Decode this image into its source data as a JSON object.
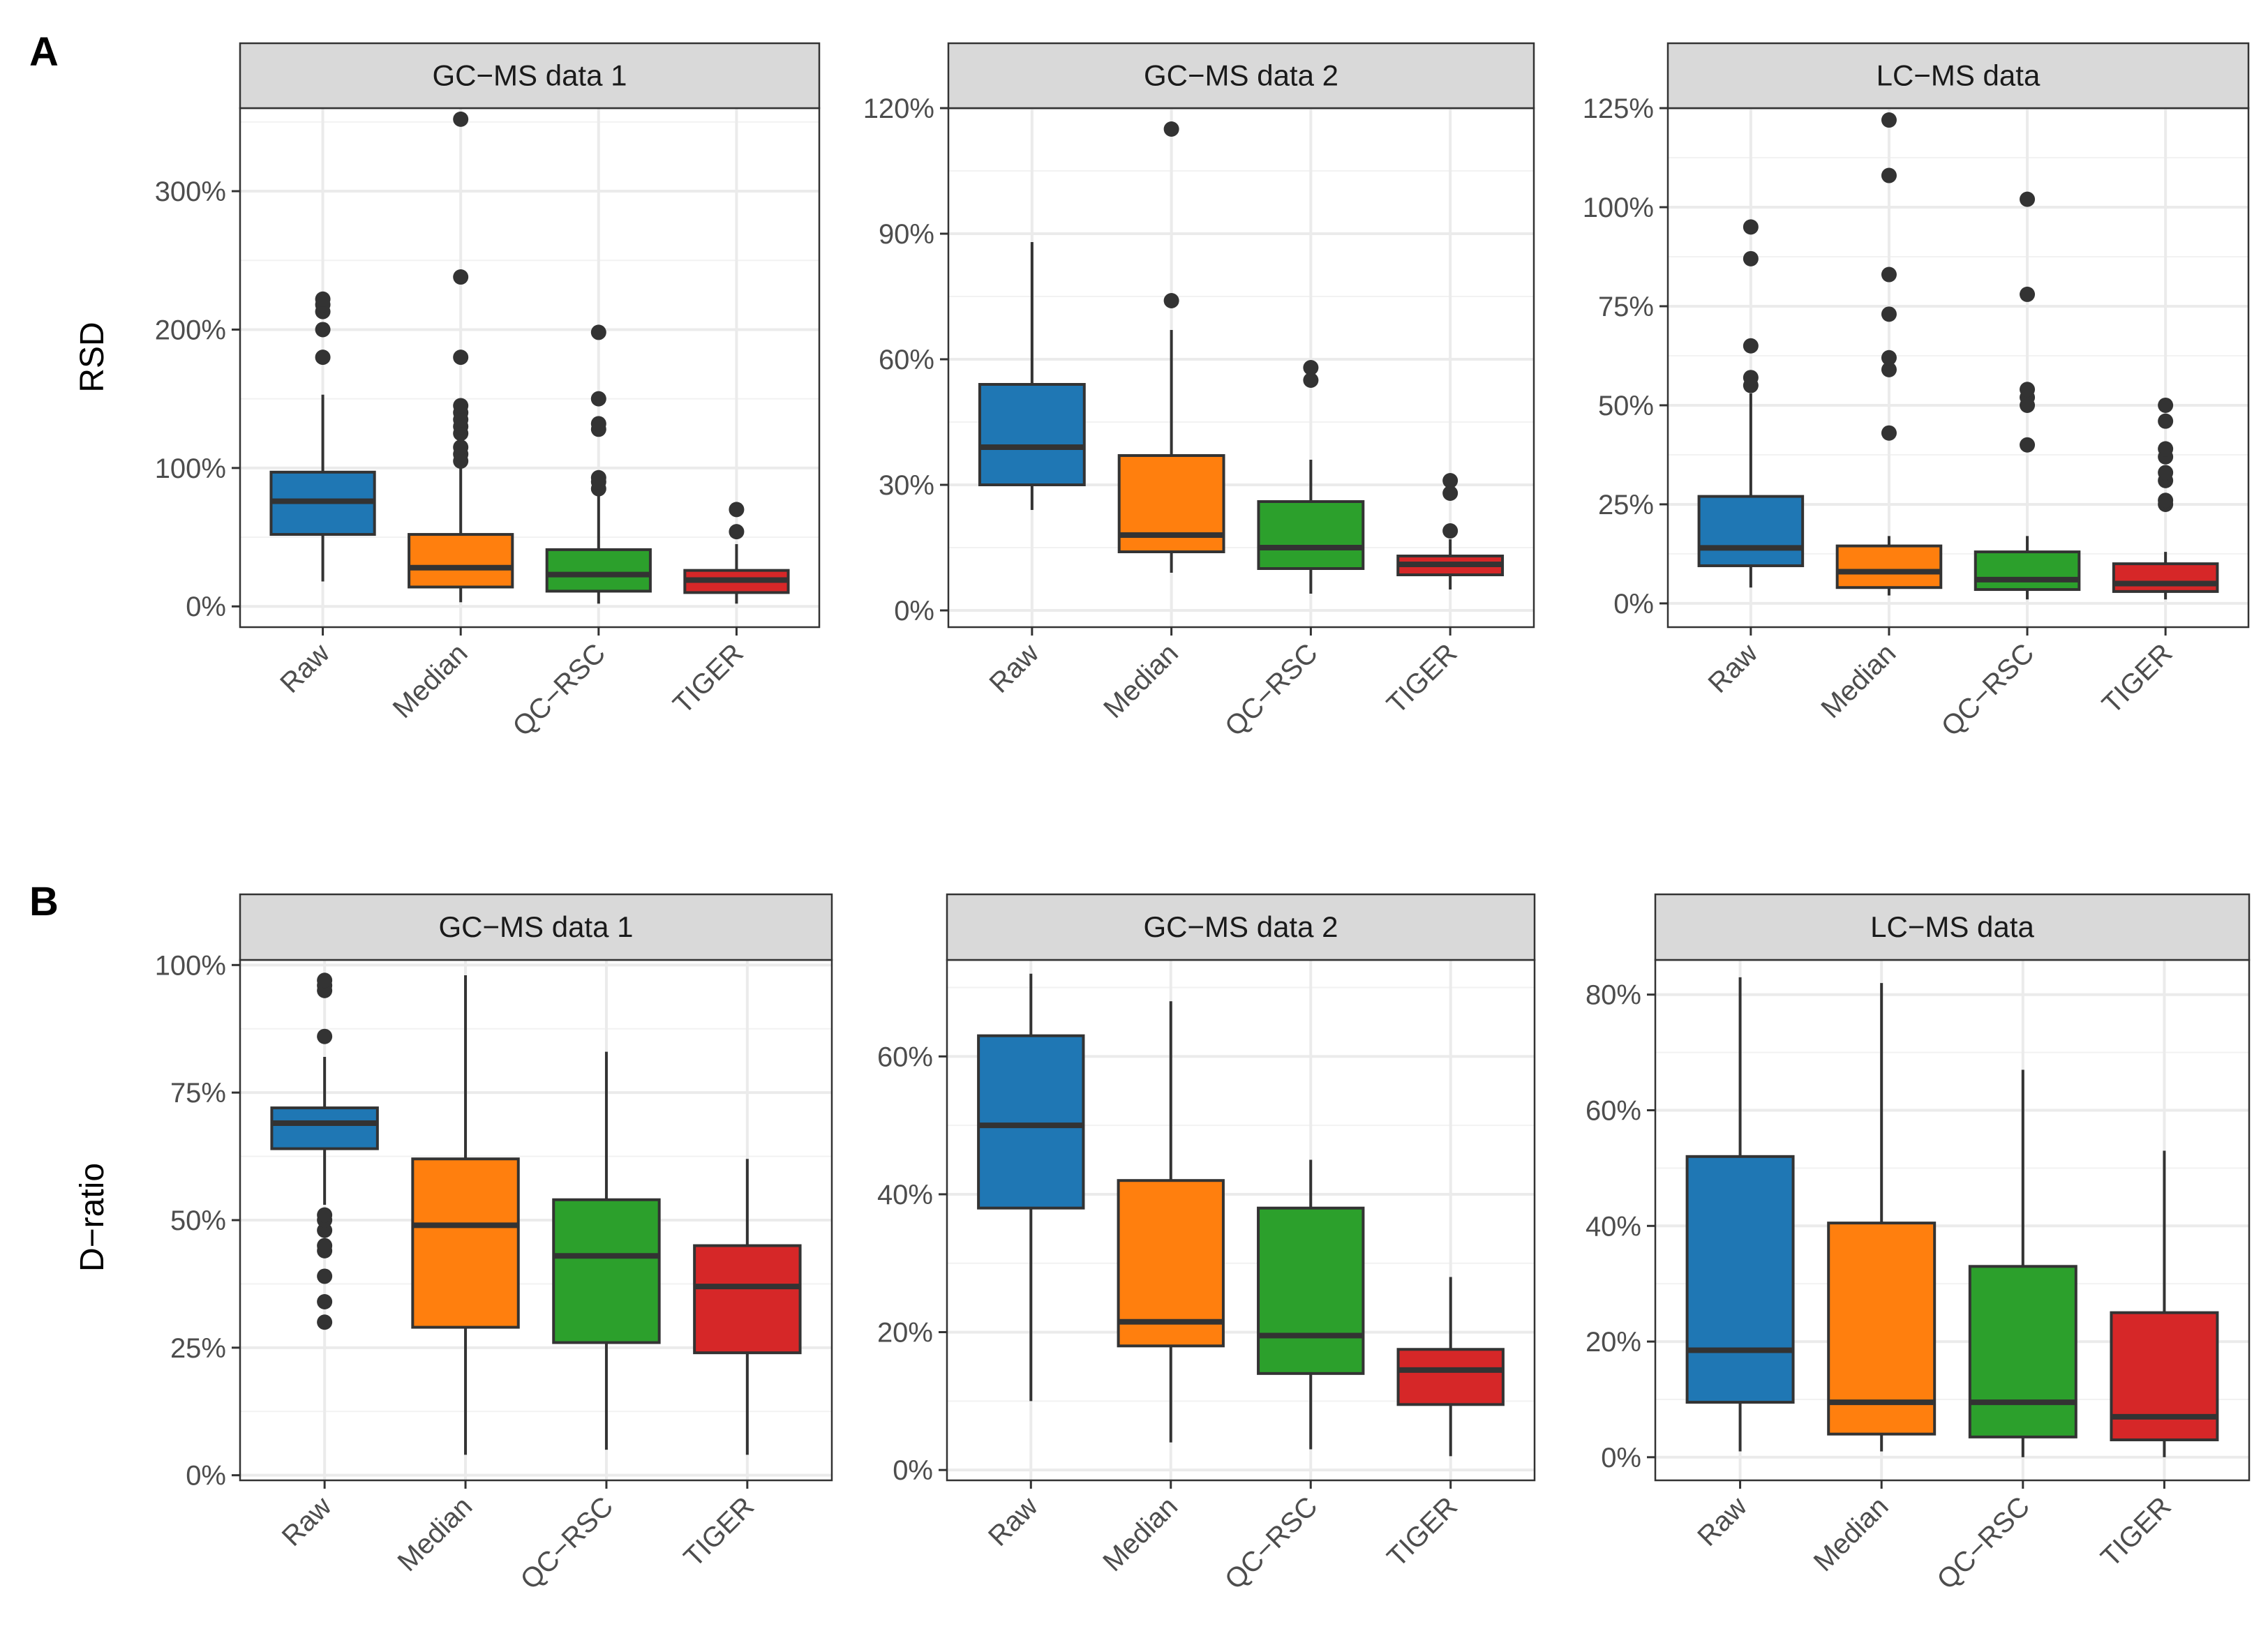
{
  "panels": [
    {
      "letter": "A",
      "ylabel": "RSD"
    },
    {
      "letter": "B",
      "ylabel": "D−ratio"
    }
  ],
  "colors": {
    "Raw": "#1F77B4",
    "Median": "#FF7F0E",
    "QC−RSC": "#2CA02C",
    "TIGER": "#D62728",
    "strip_fill": "#D9D9D9",
    "outline": "#333333"
  },
  "chart_data": [
    {
      "type": "box",
      "panel": "A",
      "title": "GC−MS data 1",
      "ylabel": "RSD",
      "categories": [
        "Raw",
        "Median",
        "QC−RSC",
        "TIGER"
      ],
      "ylim": [
        -15,
        360
      ],
      "yticks": [
        0,
        100,
        200,
        300
      ],
      "ytick_labels": [
        "0%",
        "100%",
        "200%",
        "300%"
      ],
      "boxes": [
        {
          "min": 18,
          "q1": 52,
          "median": 76,
          "q3": 97,
          "max": 153,
          "outliers": [
            180,
            200,
            213,
            218,
            222
          ]
        },
        {
          "min": 3,
          "q1": 14,
          "median": 28,
          "q3": 52,
          "max": 100,
          "outliers": [
            105,
            110,
            115,
            125,
            130,
            135,
            140,
            145,
            180,
            238,
            352
          ]
        },
        {
          "min": 2,
          "q1": 11,
          "median": 23,
          "q3": 41,
          "max": 80,
          "outliers": [
            85,
            90,
            93,
            128,
            132,
            150,
            198
          ]
        },
        {
          "min": 2,
          "q1": 10,
          "median": 19,
          "q3": 26,
          "max": 45,
          "outliers": [
            54,
            70
          ]
        }
      ]
    },
    {
      "type": "box",
      "panel": "A",
      "title": "GC−MS data 2",
      "ylabel": "",
      "categories": [
        "Raw",
        "Median",
        "QC−RSC",
        "TIGER"
      ],
      "ylim": [
        -4,
        120
      ],
      "yticks": [
        0,
        30,
        60,
        90,
        120
      ],
      "ytick_labels": [
        "0%",
        "30%",
        "60%",
        "90%",
        "120%"
      ],
      "boxes": [
        {
          "min": 24,
          "q1": 30,
          "median": 39,
          "q3": 54,
          "max": 88,
          "outliers": []
        },
        {
          "min": 9,
          "q1": 14,
          "median": 18,
          "q3": 37,
          "max": 67,
          "outliers": [
            74,
            115
          ]
        },
        {
          "min": 4,
          "q1": 10,
          "median": 15,
          "q3": 26,
          "max": 36,
          "outliers": [
            55,
            58
          ]
        },
        {
          "min": 5,
          "q1": 8.5,
          "median": 11,
          "q3": 13,
          "max": 17,
          "outliers": [
            19,
            28,
            31
          ]
        }
      ]
    },
    {
      "type": "box",
      "panel": "A",
      "title": "LC−MS data",
      "ylabel": "",
      "categories": [
        "Raw",
        "Median",
        "QC−RSC",
        "TIGER"
      ],
      "ylim": [
        -6,
        125
      ],
      "yticks": [
        0,
        25,
        50,
        75,
        100,
        125
      ],
      "ytick_labels": [
        "0%",
        "25%",
        "50%",
        "75%",
        "100%",
        "125%"
      ],
      "boxes": [
        {
          "min": 4,
          "q1": 9.5,
          "median": 14,
          "q3": 27,
          "max": 53,
          "outliers": [
            55,
            57,
            65,
            87,
            95
          ]
        },
        {
          "min": 2,
          "q1": 4,
          "median": 8,
          "q3": 14.5,
          "max": 17,
          "outliers": [
            43,
            59,
            62,
            73,
            83,
            108,
            122
          ]
        },
        {
          "min": 1,
          "q1": 3.5,
          "median": 6,
          "q3": 13,
          "max": 17,
          "outliers": [
            40,
            50,
            52,
            54,
            78,
            102
          ]
        },
        {
          "min": 1,
          "q1": 3,
          "median": 5,
          "q3": 10,
          "max": 13,
          "outliers": [
            25,
            26,
            31,
            33,
            37,
            39,
            46,
            50
          ]
        }
      ]
    },
    {
      "type": "box",
      "panel": "B",
      "title": "GC−MS data 1",
      "ylabel": "D−ratio",
      "categories": [
        "Raw",
        "Median",
        "QC−RSC",
        "TIGER"
      ],
      "ylim": [
        -1,
        101
      ],
      "yticks": [
        0,
        25,
        50,
        75,
        100
      ],
      "ytick_labels": [
        "0%",
        "25%",
        "50%",
        "75%",
        "100%"
      ],
      "boxes": [
        {
          "min": 53,
          "q1": 64,
          "median": 69,
          "q3": 72,
          "max": 82,
          "outliers": [
            30,
            34,
            39,
            44,
            45,
            48,
            50,
            51,
            86,
            95,
            96,
            97
          ]
        },
        {
          "min": 4,
          "q1": 29,
          "median": 49,
          "q3": 62,
          "max": 98,
          "outliers": []
        },
        {
          "min": 5,
          "q1": 26,
          "median": 43,
          "q3": 54,
          "max": 83,
          "outliers": []
        },
        {
          "min": 4,
          "q1": 24,
          "median": 37,
          "q3": 45,
          "max": 62,
          "outliers": []
        }
      ]
    },
    {
      "type": "box",
      "panel": "B",
      "title": "GC−MS data 2",
      "ylabel": "",
      "categories": [
        "Raw",
        "Median",
        "QC−RSC",
        "TIGER"
      ],
      "ylim": [
        -1.5,
        74
      ],
      "yticks": [
        0,
        20,
        40,
        60
      ],
      "ytick_labels": [
        "0%",
        "20%",
        "40%",
        "60%"
      ],
      "boxes": [
        {
          "min": 10,
          "q1": 38,
          "median": 50,
          "q3": 63,
          "max": 72,
          "outliers": []
        },
        {
          "min": 4,
          "q1": 18,
          "median": 21.5,
          "q3": 42,
          "max": 68,
          "outliers": []
        },
        {
          "min": 3,
          "q1": 14,
          "median": 19.5,
          "q3": 38,
          "max": 45,
          "outliers": []
        },
        {
          "min": 2,
          "q1": 9.5,
          "median": 14.5,
          "q3": 17.5,
          "max": 28,
          "outliers": []
        }
      ]
    },
    {
      "type": "box",
      "panel": "B",
      "title": "LC−MS data",
      "ylabel": "",
      "categories": [
        "Raw",
        "Median",
        "QC−RSC",
        "TIGER"
      ],
      "ylim": [
        -4,
        86
      ],
      "yticks": [
        0,
        20,
        40,
        60,
        80
      ],
      "ytick_labels": [
        "0%",
        "20%",
        "40%",
        "60%",
        "80%"
      ],
      "boxes": [
        {
          "min": 1,
          "q1": 9.5,
          "median": 18.5,
          "q3": 52,
          "max": 83,
          "outliers": []
        },
        {
          "min": 1,
          "q1": 4,
          "median": 9.5,
          "q3": 40.5,
          "max": 82,
          "outliers": []
        },
        {
          "min": 0,
          "q1": 3.5,
          "median": 9.5,
          "q3": 33,
          "max": 67,
          "outliers": []
        },
        {
          "min": 0,
          "q1": 3,
          "median": 7,
          "q3": 25,
          "max": 53,
          "outliers": []
        }
      ]
    }
  ]
}
